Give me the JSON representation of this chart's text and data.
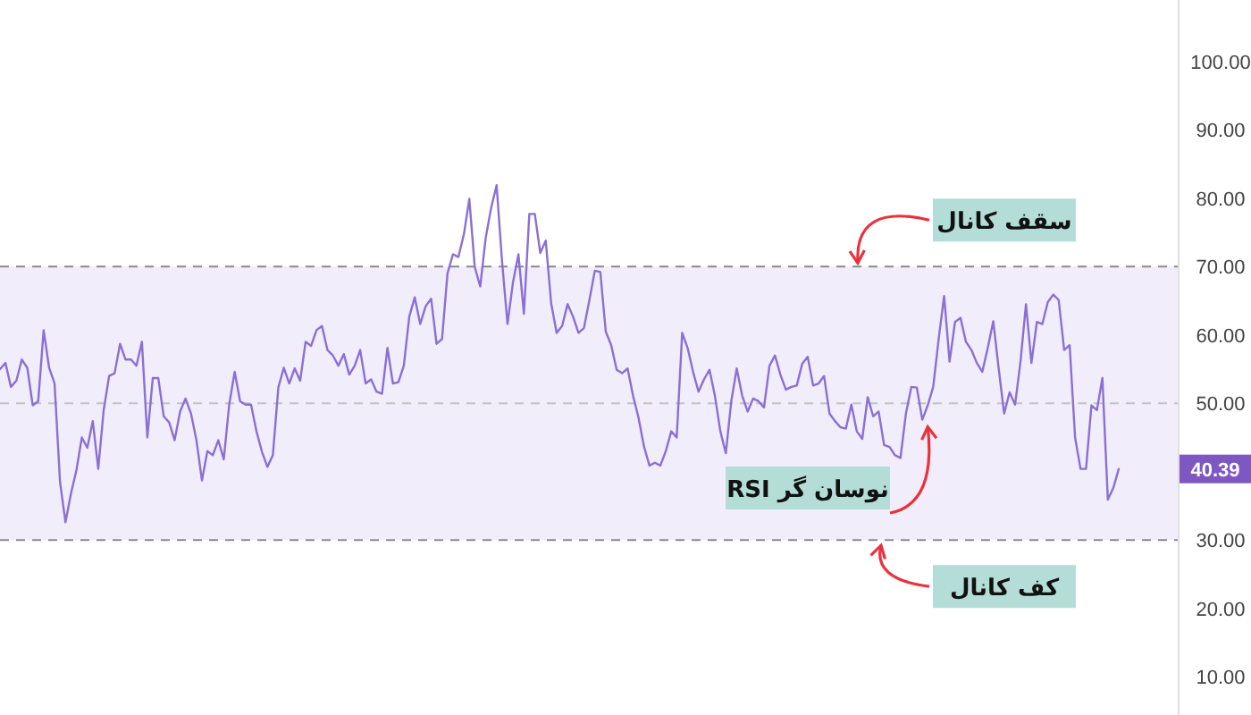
{
  "chart_data": {
    "type": "line",
    "tick_labels": "y",
    "ylim": [
      4.4,
      109
    ],
    "yticks": [
      {
        "value": 10,
        "label": "10.00"
      },
      {
        "value": 20,
        "label": "20.00"
      },
      {
        "value": 30,
        "label": "30.00"
      },
      {
        "value": 50,
        "label": "50.00"
      },
      {
        "value": 60,
        "label": "60.00"
      },
      {
        "value": 70,
        "label": "70.00"
      },
      {
        "value": 80,
        "label": "80.00"
      },
      {
        "value": 90,
        "label": "90.00"
      },
      {
        "value": 100,
        "label": "100.00"
      }
    ],
    "categories": [
      null,
      null,
      null,
      null,
      null,
      null,
      null,
      null,
      null,
      null,
      null,
      null,
      null,
      null,
      null,
      null,
      null,
      null,
      null,
      null,
      null,
      null,
      null,
      null,
      null,
      null,
      null,
      null,
      null,
      null,
      null,
      null,
      null,
      null,
      null,
      null,
      null,
      null,
      null,
      null,
      null,
      null,
      null,
      null,
      null,
      null,
      null,
      null,
      null,
      null,
      null,
      null,
      null,
      null,
      null,
      null,
      null,
      null,
      null,
      null,
      null,
      null,
      null,
      null,
      null,
      null,
      null,
      null,
      null,
      null,
      null,
      null,
      null,
      null,
      null,
      null,
      null,
      null,
      null,
      null,
      null,
      null,
      null,
      null,
      null,
      null,
      null,
      null,
      null,
      null,
      null,
      null,
      null,
      null,
      null,
      null,
      null,
      null,
      null,
      null,
      null,
      null,
      null,
      null,
      null,
      null,
      null,
      null,
      null,
      null,
      null,
      null,
      null,
      null,
      null,
      null,
      null,
      null,
      null,
      null,
      null,
      null,
      null,
      null,
      null,
      null,
      null,
      null,
      null,
      null,
      null,
      null,
      null,
      null,
      null,
      null,
      null,
      null,
      null,
      null,
      null,
      null,
      null,
      null,
      null,
      null,
      null,
      null,
      null,
      null,
      null,
      null,
      null,
      null,
      null,
      null,
      null,
      null,
      null,
      null,
      null,
      null,
      null,
      null,
      null,
      null,
      null,
      null,
      null,
      null,
      null,
      null,
      null,
      null,
      null,
      null,
      null,
      null,
      null,
      null,
      null,
      null,
      null,
      null,
      null,
      null,
      null,
      null,
      null,
      null,
      null,
      null,
      null,
      null,
      null,
      null,
      null,
      null,
      null,
      null,
      null,
      null,
      null,
      null,
      null,
      null
    ],
    "series": [
      {
        "name": "نوسان گر RSI",
        "color": "#8b6fd3",
        "values": [
          55.0,
          55.9,
          52.4,
          53.3,
          56.4,
          55.2,
          49.7,
          50.3,
          60.7,
          55.2,
          52.9,
          38.5,
          32.6,
          36.8,
          40.2,
          45.0,
          43.5,
          47.4,
          40.4,
          49.0,
          54.0,
          54.4,
          58.7,
          56.4,
          56.4,
          55.5,
          59.0,
          45.0,
          53.7,
          53.7,
          48.1,
          47.2,
          44.6,
          48.8,
          50.7,
          48.5,
          44.6,
          38.7,
          43.0,
          42.4,
          44.6,
          41.8,
          49.8,
          54.6,
          50.3,
          49.8,
          49.8,
          45.9,
          42.9,
          40.7,
          42.4,
          52.3,
          55.2,
          52.9,
          55.1,
          53.3,
          59.0,
          58.4,
          60.7,
          61.3,
          57.8,
          57.0,
          55.5,
          57.2,
          54.2,
          55.5,
          57.8,
          52.9,
          53.5,
          51.7,
          51.4,
          58.1,
          52.9,
          53.1,
          55.5,
          62.7,
          65.5,
          61.6,
          64.2,
          65.3,
          58.7,
          59.4,
          69.0,
          71.8,
          71.4,
          74.7,
          79.9,
          69.9,
          67.1,
          74.2,
          78.6,
          81.9,
          70.7,
          61.6,
          67.7,
          71.8,
          63.1,
          77.7,
          77.7,
          72.0,
          73.8,
          64.6,
          60.3,
          61.3,
          64.5,
          62.7,
          60.3,
          61.0,
          65.1,
          69.4,
          69.2,
          60.5,
          58.5,
          54.9,
          54.4,
          55.1,
          51.1,
          47.9,
          43.7,
          40.9,
          41.3,
          40.9,
          43.0,
          45.9,
          45.0,
          60.3,
          58.1,
          54.6,
          51.7,
          53.5,
          54.9,
          51.1,
          45.9,
          42.7,
          50.3,
          55.1,
          51.1,
          48.8,
          50.7,
          50.3,
          49.4,
          55.5,
          57.0,
          54.2,
          52.0,
          52.4,
          52.6,
          55.8,
          56.8,
          52.6,
          52.9,
          54.0,
          48.5,
          47.4,
          46.5,
          46.3,
          49.8,
          45.9,
          44.8,
          50.9,
          48.1,
          48.8,
          43.9,
          43.6,
          42.4,
          42.0,
          48.5,
          52.4,
          52.3,
          47.6,
          49.7,
          52.4,
          59.4,
          65.7,
          56.1,
          61.9,
          62.5,
          59.0,
          57.8,
          55.9,
          54.6,
          58.1,
          62.0,
          55.1,
          48.5,
          51.6,
          49.8,
          56.1,
          64.5,
          55.9,
          61.9,
          61.6,
          64.8,
          65.9,
          65.1,
          57.8,
          58.5,
          45.0,
          40.4,
          40.4,
          49.7,
          49.0,
          53.7,
          35.9,
          37.6,
          40.4
        ]
      }
    ],
    "bands": [
      {
        "axis": "y",
        "from": 30,
        "to": 70,
        "color": "#f1edfa"
      }
    ],
    "ref_lines": [
      {
        "axis": "y",
        "value": 70,
        "label": "سقف کانال",
        "color": "#8a8a8a",
        "line_style": "dashed"
      },
      {
        "axis": "y",
        "value": 50,
        "color": "#c2c2c2",
        "line_style": "dashed"
      },
      {
        "axis": "y",
        "value": 30,
        "label": "کف کانال",
        "color": "#8a8a8a",
        "line_style": "dashed"
      }
    ],
    "annotations": [
      "40.39"
    ]
  }
}
